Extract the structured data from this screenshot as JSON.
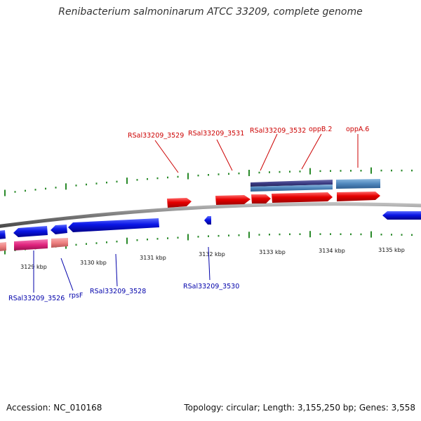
{
  "title": "Renibacterium salmoninarum ATCC 33209, complete genome",
  "footer": {
    "accession": "Accession: NC_010168",
    "summary": "Topology: circular; Length: 3,155,250 bp; Genes: 3,558"
  },
  "colors": {
    "backbone": "#8a8a8a",
    "forward_cds": "#e60000",
    "reverse_cds": "#0a16e6",
    "rna_pink": "#e8338a",
    "rna_salmon": "#f08a8a",
    "operon_purple": "#4a4a8c",
    "operon_blue": "#5b8fc0",
    "gc_ticks": "#2a8a2a",
    "forward_label": "#cc0000",
    "reverse_label": "#0000aa"
  },
  "scale_ticks": [
    "3129 kbp",
    "3130 kbp",
    "3131 kbp",
    "3132 kbp",
    "3133 kbp",
    "3134 kbp",
    "3135 kbp"
  ],
  "forward_labels": [
    "RSal33209_3529",
    "RSal33209_3531",
    "RSal33209_3532",
    "oppB.2",
    "oppA.6"
  ],
  "reverse_labels": [
    "RSal33209_3526",
    "rpsF",
    "RSal33209_3528",
    "RSal33209_3530"
  ]
}
